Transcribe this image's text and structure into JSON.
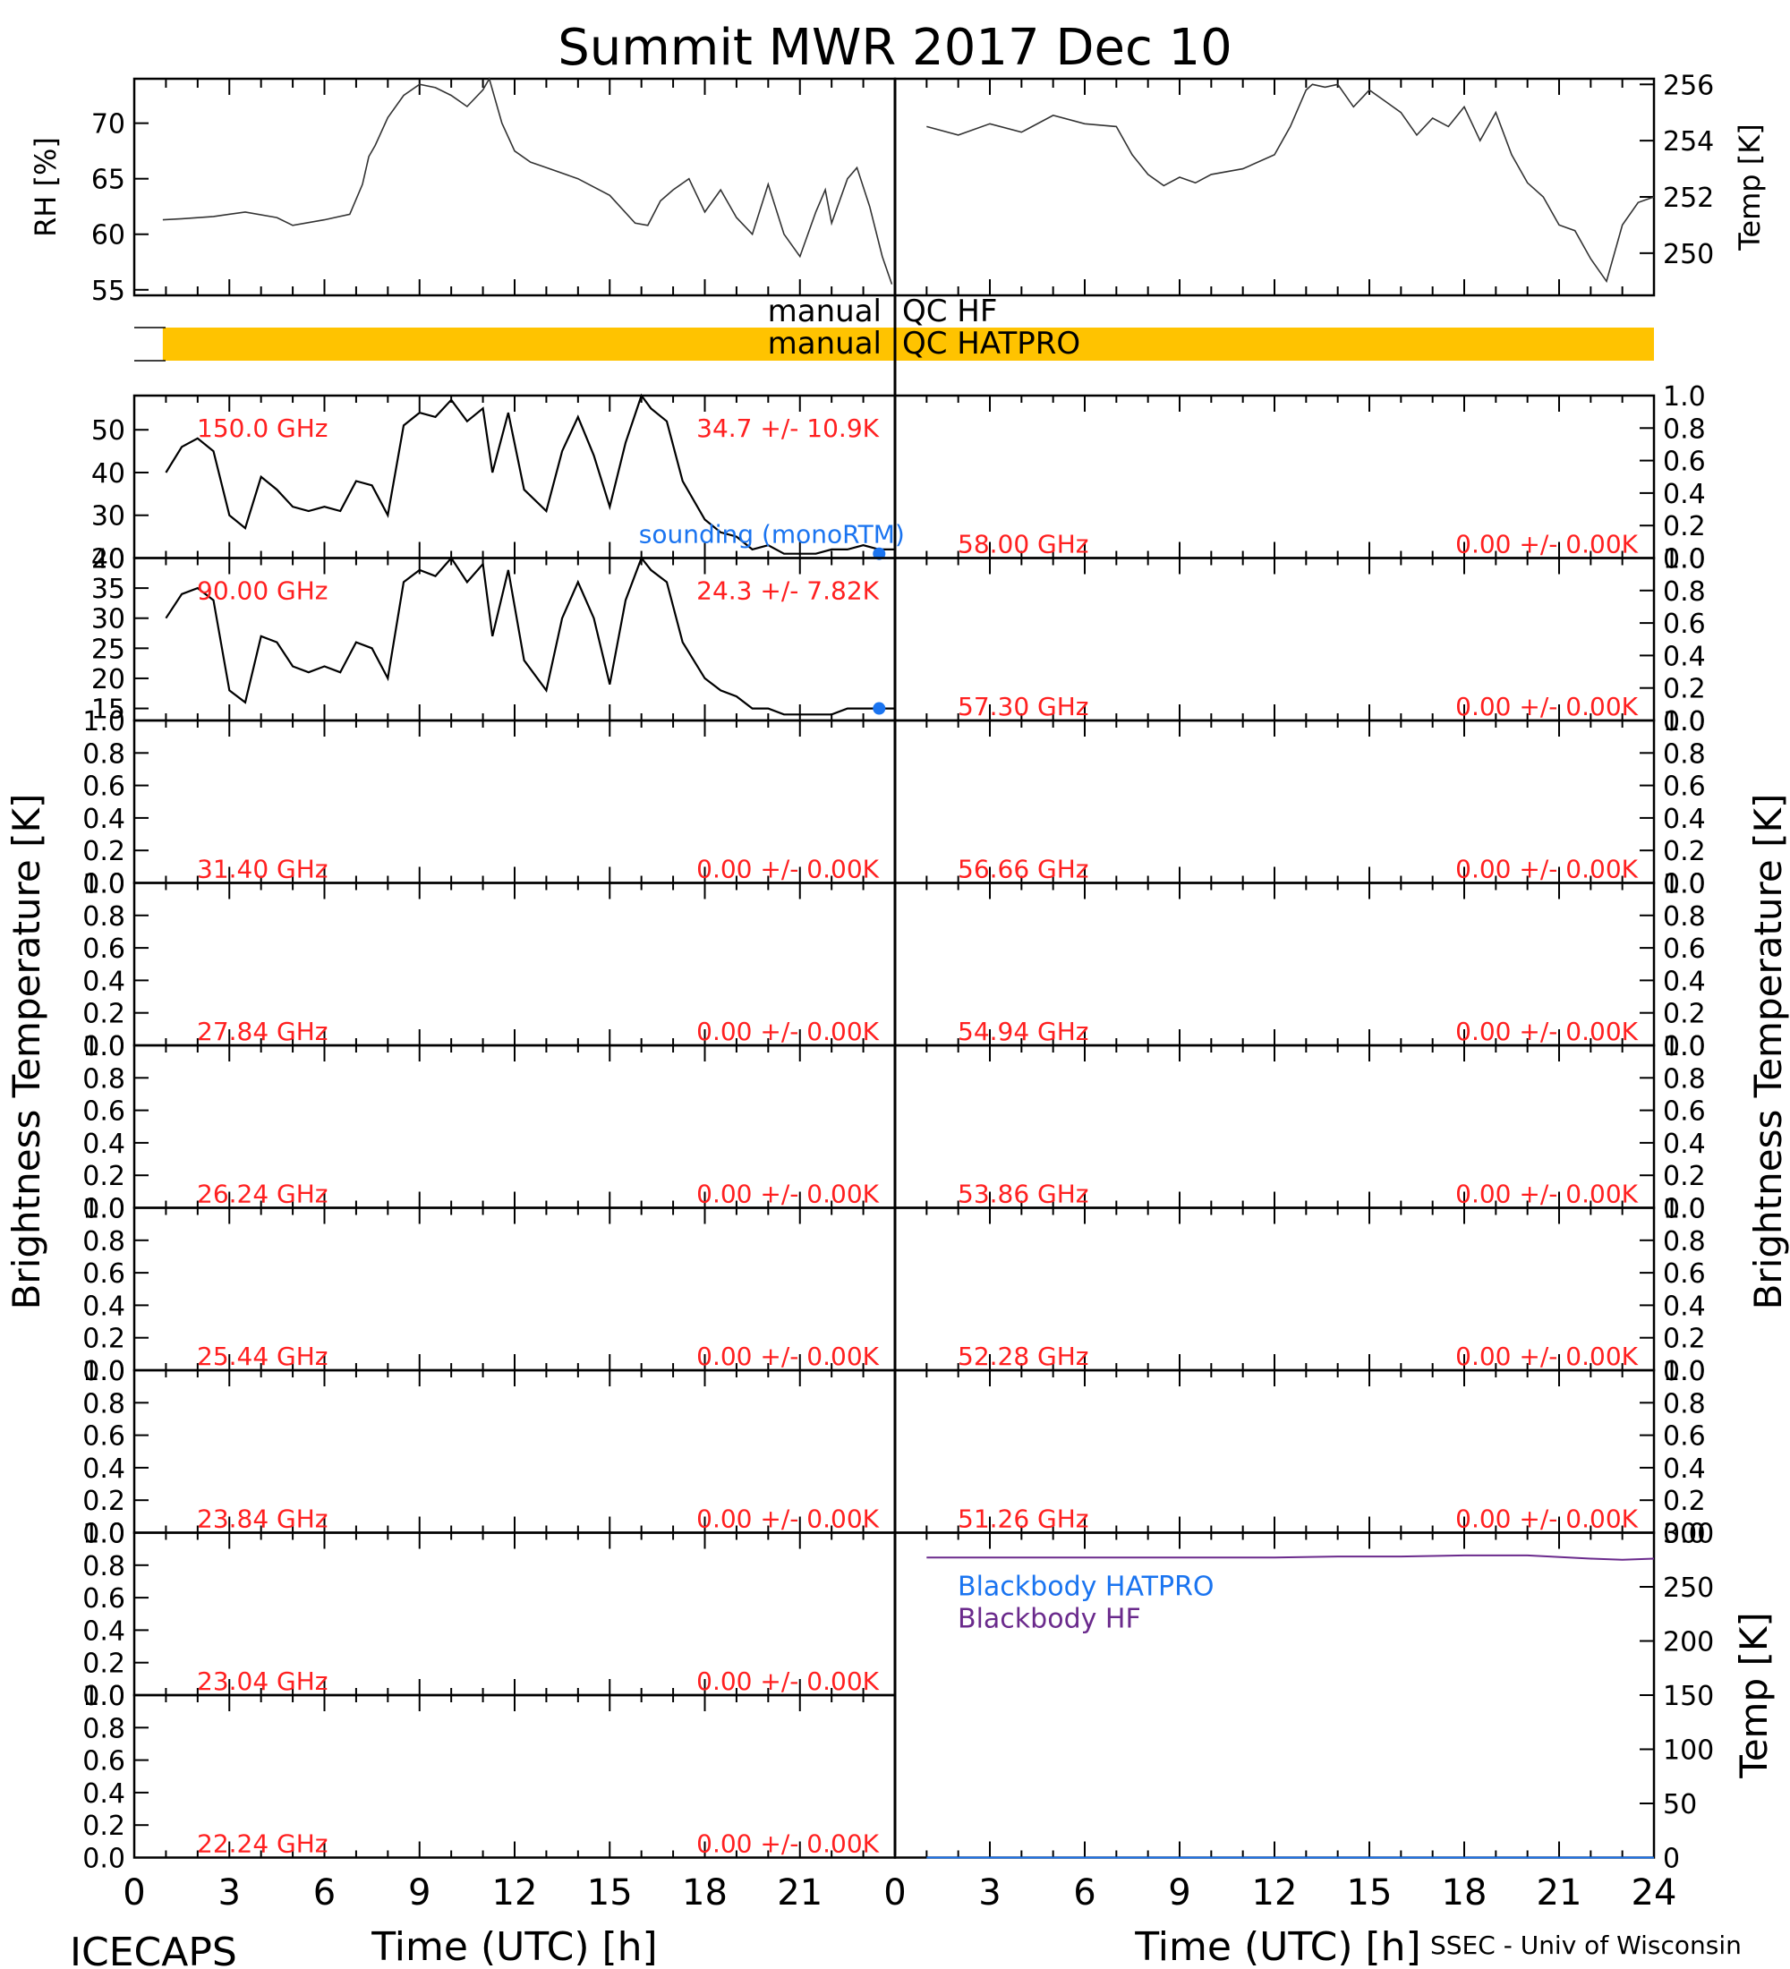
{
  "title": "Summit MWR 2017 Dec 10",
  "footer": {
    "left": "ICECAPS",
    "right": "SSEC - Univ of Wisconsin"
  },
  "xaxis": {
    "label": "Time (UTC) [h]",
    "ticks": [
      "0",
      "3",
      "6",
      "9",
      "12",
      "15",
      "18",
      "21",
      "24"
    ],
    "left_ticks": [
      "0",
      "3",
      "6",
      "9",
      "12",
      "15",
      "18",
      "21"
    ],
    "range": [
      0,
      24
    ]
  },
  "left_ylabel": "Brightness Temperature [K]",
  "right_ylabel": "Brightness Temperature [K]",
  "colors": {
    "annotation": "#ff2020",
    "sounding": "#1a74f0",
    "qc_bar": "#ffc300",
    "bb_hatpro": "#1a74f0",
    "bb_hf": "#6a2a8c",
    "trace": "#000000"
  },
  "qc": {
    "hf_label_left": "manual",
    "hf_label_right": "QC HF",
    "hatpro_label_left": "manual",
    "hatpro_label_right": "QC HATPRO",
    "hatpro_flag_span_h": [
      0.9,
      24
    ]
  },
  "chart_data": [
    {
      "type": "line",
      "id": "rh",
      "ylabel": "RH [%]",
      "ylim": [
        54.5,
        74
      ],
      "yticks": [
        "70",
        "65",
        "60",
        "55"
      ],
      "xlim": [
        0,
        24
      ],
      "x": [
        0.9,
        1.5,
        2.5,
        3.5,
        4.5,
        5.0,
        6.0,
        6.8,
        7.2,
        7.4,
        7.6,
        8.0,
        8.5,
        9.0,
        9.5,
        10.0,
        10.5,
        11.0,
        11.2,
        11.6,
        12.0,
        12.5,
        13.0,
        14.0,
        15.0,
        15.8,
        16.2,
        16.6,
        17.0,
        17.5,
        18.0,
        18.5,
        19.0,
        19.5,
        20.0,
        20.5,
        21.0,
        21.5,
        21.8,
        22.0,
        22.5,
        22.8,
        23.2,
        23.6,
        23.9
      ],
      "y": [
        61.3,
        61.4,
        61.6,
        62.0,
        61.5,
        60.8,
        61.3,
        61.8,
        64.5,
        67.0,
        68.0,
        70.5,
        72.5,
        73.5,
        73.2,
        72.5,
        71.5,
        73.0,
        74.0,
        70.0,
        67.5,
        66.5,
        66.0,
        65.0,
        63.5,
        61.0,
        60.8,
        63.0,
        64.0,
        65.0,
        62.0,
        64.0,
        61.5,
        60.0,
        64.5,
        60.0,
        58.0,
        62.0,
        64.0,
        61.0,
        65.0,
        66.0,
        62.5,
        58.0,
        55.5
      ]
    },
    {
      "type": "line",
      "id": "temp",
      "ylabel": "Temp [K]",
      "ylim": [
        248.5,
        256.2
      ],
      "yticks": [
        "256",
        "254",
        "252",
        "250"
      ],
      "xlim": [
        0,
        24
      ],
      "x": [
        1.0,
        2.0,
        3.0,
        4.0,
        5.0,
        6.0,
        7.0,
        7.5,
        8.0,
        8.5,
        9.0,
        9.5,
        10.0,
        11.0,
        12.0,
        12.5,
        13.0,
        13.2,
        13.6,
        14.0,
        14.5,
        15.0,
        15.5,
        16.0,
        16.5,
        17.0,
        17.5,
        18.0,
        18.5,
        19.0,
        19.5,
        20.0,
        20.5,
        21.0,
        21.5,
        22.0,
        22.5,
        23.0,
        23.5,
        24.0
      ],
      "y": [
        254.5,
        254.2,
        254.6,
        254.3,
        254.9,
        254.6,
        254.5,
        253.5,
        252.8,
        252.4,
        252.7,
        252.5,
        252.8,
        253.0,
        253.5,
        254.5,
        255.8,
        256.0,
        255.9,
        256.0,
        255.2,
        255.8,
        255.4,
        255.0,
        254.2,
        254.8,
        254.5,
        255.2,
        254.0,
        255.0,
        253.5,
        252.5,
        252.0,
        251.0,
        250.8,
        249.8,
        249.0,
        251.0,
        251.8,
        252.0
      ]
    },
    {
      "type": "line",
      "id": "ch_150",
      "side": "left",
      "freq": "150.0 GHz",
      "stats": "34.7 +/- 10.9K",
      "ylim": [
        20,
        58
      ],
      "yticks": [
        "50",
        "40",
        "30",
        "20"
      ],
      "xlim": [
        0,
        24
      ],
      "x": [
        1.0,
        1.5,
        2.0,
        2.5,
        3.0,
        3.5,
        4.0,
        4.5,
        5.0,
        5.5,
        6.0,
        6.5,
        7.0,
        7.5,
        8.0,
        8.5,
        9.0,
        9.5,
        10.0,
        10.5,
        11.0,
        11.3,
        11.8,
        12.3,
        13.0,
        13.5,
        14.0,
        14.5,
        15.0,
        15.5,
        16.0,
        16.3,
        16.8,
        17.3,
        18.0,
        18.5,
        19.0,
        19.5,
        20.0,
        20.5,
        21.0,
        21.5,
        22.0,
        22.5,
        23.0,
        23.5,
        24.0
      ],
      "y": [
        40,
        46,
        48,
        45,
        30,
        27,
        39,
        36,
        32,
        31,
        32,
        31,
        38,
        37,
        30,
        51,
        54,
        53,
        57,
        52,
        55,
        40,
        54,
        36,
        31,
        45,
        53,
        44,
        32,
        47,
        58,
        55,
        52,
        38,
        29,
        26,
        25,
        22,
        23,
        21,
        21,
        21,
        22,
        22,
        23,
        22,
        22
      ],
      "sounding": {
        "label": "sounding (monoRTM)",
        "x": 23.5,
        "y": 21
      }
    },
    {
      "type": "line",
      "id": "ch_90",
      "side": "left",
      "freq": "90.00 GHz",
      "stats": "24.3 +/- 7.82K",
      "ylim": [
        13,
        40
      ],
      "yticks": [
        "40",
        "35",
        "30",
        "25",
        "20",
        "15"
      ],
      "xlim": [
        0,
        24
      ],
      "x": [
        1.0,
        1.5,
        2.0,
        2.5,
        3.0,
        3.5,
        4.0,
        4.5,
        5.0,
        5.5,
        6.0,
        6.5,
        7.0,
        7.5,
        8.0,
        8.5,
        9.0,
        9.5,
        10.0,
        10.5,
        11.0,
        11.3,
        11.8,
        12.3,
        13.0,
        13.5,
        14.0,
        14.5,
        15.0,
        15.5,
        16.0,
        16.3,
        16.8,
        17.3,
        18.0,
        18.5,
        19.0,
        19.5,
        20.0,
        20.5,
        21.0,
        21.5,
        22.0,
        22.5,
        23.0,
        23.5,
        24.0
      ],
      "y": [
        30,
        34,
        35,
        33,
        18,
        16,
        27,
        26,
        22,
        21,
        22,
        21,
        26,
        25,
        20,
        36,
        38,
        37,
        40,
        36,
        39,
        27,
        38,
        23,
        18,
        30,
        36,
        30,
        19,
        33,
        40,
        38,
        36,
        26,
        20,
        18,
        17,
        15,
        15,
        14,
        14,
        14,
        14,
        15,
        15,
        15,
        15
      ],
      "sounding": {
        "label": "",
        "x": 23.5,
        "y": 15
      }
    },
    {
      "type": "line",
      "id": "ch_31",
      "side": "left",
      "freq": "31.40 GHz",
      "stats": "0.00 +/- 0.00K",
      "ylim": [
        0,
        1
      ],
      "yticks": [
        "1.0",
        "0.8",
        "0.6",
        "0.4",
        "0.2",
        "0.0"
      ],
      "x": [],
      "y": []
    },
    {
      "type": "line",
      "id": "ch_27",
      "side": "left",
      "freq": "27.84 GHz",
      "stats": "0.00 +/- 0.00K",
      "ylim": [
        0,
        1
      ],
      "yticks": [
        "1.0",
        "0.8",
        "0.6",
        "0.4",
        "0.2",
        "0.0"
      ],
      "x": [],
      "y": []
    },
    {
      "type": "line",
      "id": "ch_26",
      "side": "left",
      "freq": "26.24 GHz",
      "stats": "0.00 +/- 0.00K",
      "ylim": [
        0,
        1
      ],
      "yticks": [
        "1.0",
        "0.8",
        "0.6",
        "0.4",
        "0.2",
        "0.0"
      ],
      "x": [],
      "y": []
    },
    {
      "type": "line",
      "id": "ch_25",
      "side": "left",
      "freq": "25.44 GHz",
      "stats": "0.00 +/- 0.00K",
      "ylim": [
        0,
        1
      ],
      "yticks": [
        "1.0",
        "0.8",
        "0.6",
        "0.4",
        "0.2",
        "0.0"
      ],
      "x": [],
      "y": []
    },
    {
      "type": "line",
      "id": "ch_23_84",
      "side": "left",
      "freq": "23.84 GHz",
      "stats": "0.00 +/- 0.00K",
      "ylim": [
        0,
        1
      ],
      "yticks": [
        "1.0",
        "0.8",
        "0.6",
        "0.4",
        "0.2",
        "0.0"
      ],
      "x": [],
      "y": []
    },
    {
      "type": "line",
      "id": "ch_23_04",
      "side": "left",
      "freq": "23.04 GHz",
      "stats": "0.00 +/- 0.00K",
      "ylim": [
        0,
        1
      ],
      "yticks": [
        "1.0",
        "0.8",
        "0.6",
        "0.4",
        "0.2",
        "0.0"
      ],
      "x": [],
      "y": []
    },
    {
      "type": "line",
      "id": "ch_22",
      "side": "left",
      "freq": "22.24 GHz",
      "stats": "0.00 +/- 0.00K",
      "ylim": [
        0,
        1
      ],
      "yticks": [
        "1.0",
        "0.8",
        "0.6",
        "0.4",
        "0.2",
        "0.0"
      ],
      "x": [],
      "y": []
    },
    {
      "type": "line",
      "id": "ch_58",
      "side": "right",
      "freq": "58.00 GHz",
      "stats": "0.00 +/- 0.00K",
      "ylim": [
        0,
        1
      ],
      "yticks": [
        "1.0",
        "0.8",
        "0.6",
        "0.4",
        "0.2",
        "0.0"
      ],
      "x": [],
      "y": []
    },
    {
      "type": "line",
      "id": "ch_57",
      "side": "right",
      "freq": "57.30 GHz",
      "stats": "0.00 +/- 0.00K",
      "ylim": [
        0,
        1
      ],
      "yticks": [
        "1.0",
        "0.8",
        "0.6",
        "0.4",
        "0.2",
        "0.0"
      ],
      "x": [],
      "y": []
    },
    {
      "type": "line",
      "id": "ch_56",
      "side": "right",
      "freq": "56.66 GHz",
      "stats": "0.00 +/- 0.00K",
      "ylim": [
        0,
        1
      ],
      "yticks": [
        "1.0",
        "0.8",
        "0.6",
        "0.4",
        "0.2",
        "0.0"
      ],
      "x": [],
      "y": []
    },
    {
      "type": "line",
      "id": "ch_54",
      "side": "right",
      "freq": "54.94 GHz",
      "stats": "0.00 +/- 0.00K",
      "ylim": [
        0,
        1
      ],
      "yticks": [
        "1.0",
        "0.8",
        "0.6",
        "0.4",
        "0.2",
        "0.0"
      ],
      "x": [],
      "y": []
    },
    {
      "type": "line",
      "id": "ch_53",
      "side": "right",
      "freq": "53.86 GHz",
      "stats": "0.00 +/- 0.00K",
      "ylim": [
        0,
        1
      ],
      "yticks": [
        "1.0",
        "0.8",
        "0.6",
        "0.4",
        "0.2",
        "0.0"
      ],
      "x": [],
      "y": []
    },
    {
      "type": "line",
      "id": "ch_52",
      "side": "right",
      "freq": "52.28 GHz",
      "stats": "0.00 +/- 0.00K",
      "ylim": [
        0,
        1
      ],
      "yticks": [
        "1.0",
        "0.8",
        "0.6",
        "0.4",
        "0.2",
        "0.0"
      ],
      "x": [],
      "y": []
    },
    {
      "type": "line",
      "id": "ch_51",
      "side": "right",
      "freq": "51.26 GHz",
      "stats": "0.00 +/- 0.00K",
      "ylim": [
        0,
        1
      ],
      "yticks": [
        "1.0",
        "0.8",
        "0.6",
        "0.4",
        "0.2",
        "0.0"
      ],
      "x": [],
      "y": []
    },
    {
      "type": "line",
      "id": "blackbody",
      "side": "right",
      "ylabel": "Temp [K]",
      "ylim": [
        0,
        300
      ],
      "yticks": [
        "300",
        "250",
        "200",
        "150",
        "100",
        "50",
        "0"
      ],
      "xlim": [
        0,
        24
      ],
      "series": [
        {
          "name": "Blackbody HATPRO",
          "x": [
            1,
            24
          ],
          "y": [
            0,
            0
          ]
        },
        {
          "name": "Blackbody HF",
          "x": [
            1,
            3,
            6,
            9,
            12,
            14,
            16,
            18,
            20,
            22,
            23,
            24
          ],
          "y": [
            277,
            277,
            277,
            277,
            277,
            278,
            278,
            279,
            279,
            276,
            275,
            276
          ]
        }
      ]
    }
  ]
}
